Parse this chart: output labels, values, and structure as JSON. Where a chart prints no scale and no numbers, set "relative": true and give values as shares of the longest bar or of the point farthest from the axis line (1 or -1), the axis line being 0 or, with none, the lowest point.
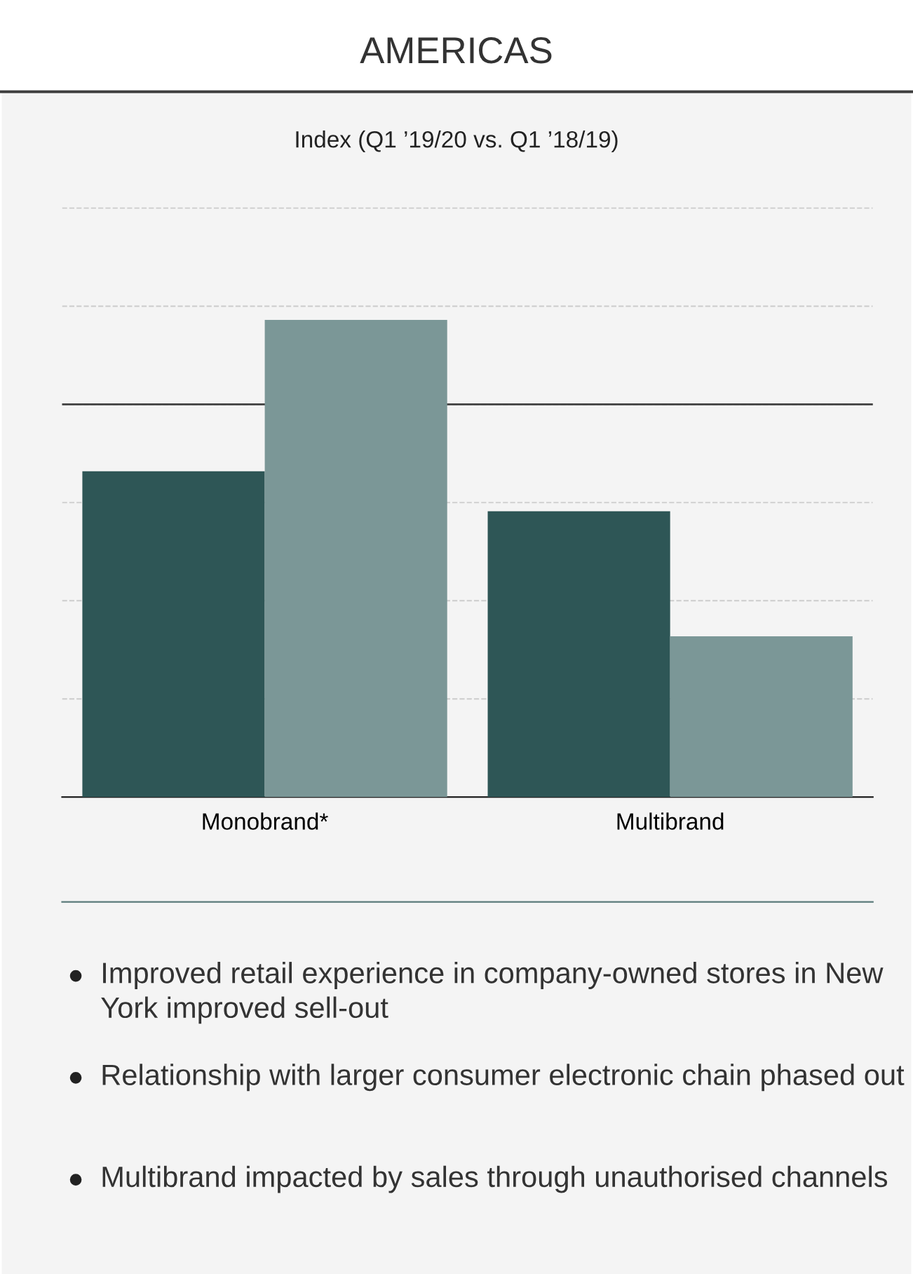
{
  "chart_data": {
    "type": "bar",
    "title": "AMERICAS",
    "subtitle": "Index (Q1 ’19/20 vs. Q1 ’18/19)",
    "categories": [
      "Monobrand*",
      "Multibrand"
    ],
    "relative": true,
    "series": [
      {
        "color": "#2e5656",
        "values": [
          0.683,
          0.599
        ]
      },
      {
        "color": "#7b9797",
        "values": [
          1,
          0.337
        ]
      }
    ],
    "ref_lines": [
      {
        "axis": "y",
        "value": 0.823,
        "color": "#404040",
        "line_style": "solid"
      }
    ],
    "grid": "y",
    "legend": false,
    "annotations": [
      "Improved retail experience in company-owned stores in New York improved sell-out",
      "Relationship with larger consumer electronic chain phased out",
      "Multibrand impacted by sales through unauthorised channels"
    ]
  }
}
